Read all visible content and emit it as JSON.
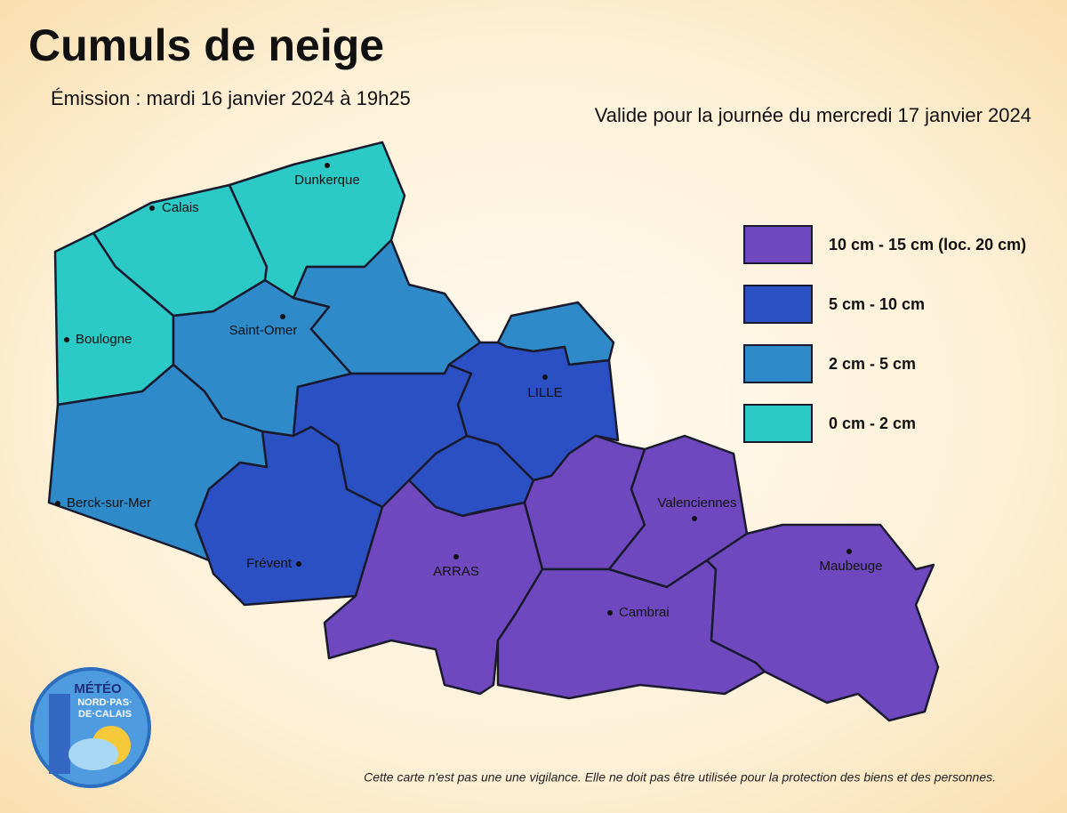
{
  "header": {
    "title": "Cumuls de neige",
    "emission": "Émission : mardi 16 janvier 2024 à 19h25",
    "validity": "Valide pour la journée du mercredi 17 janvier 2024"
  },
  "legend": {
    "items": [
      {
        "label": "10 cm - 15 cm (loc. 20 cm)",
        "color": "#6f48bf"
      },
      {
        "label": "5 cm - 10 cm",
        "color": "#2b50c4"
      },
      {
        "label": "2 cm - 5 cm",
        "color": "#2f8ac9"
      },
      {
        "label": "0 cm - 2 cm",
        "color": "#2ccac7"
      }
    ]
  },
  "cities": [
    "Dunkerque",
    "Calais",
    "Boulogne",
    "Saint-Omer",
    "LILLE",
    "Berck-sur-Mer",
    "Frévent",
    "ARRAS",
    "Valenciennes",
    "Cambrai",
    "Maubeuge"
  ],
  "logo": {
    "lines": [
      "MÉTÉO",
      "NORD·PAS·",
      "DE·CALAIS"
    ]
  },
  "footer": {
    "disclaimer": "Cette carte n'est pas une une vigilance. Elle ne doit pas être utilisée pour la protection des biens et des personnes."
  }
}
